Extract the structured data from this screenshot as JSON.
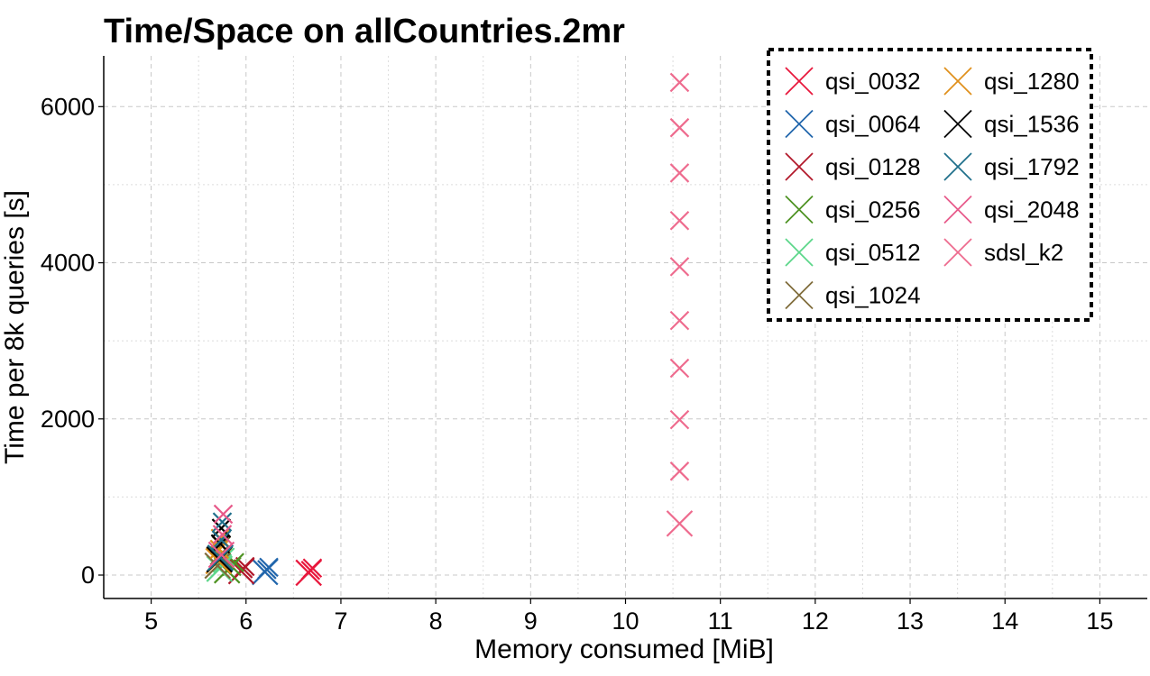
{
  "chart_data": {
    "type": "scatter",
    "title": "Time/Space on allCountries.2mr",
    "xlabel": "Memory consumed [MiB]",
    "ylabel": "Time per 8k queries [s]",
    "xlim": [
      4.5,
      15.5
    ],
    "ylim": [
      -300,
      6650
    ],
    "x_ticks": [
      5,
      6,
      7,
      8,
      9,
      10,
      11,
      12,
      13,
      14,
      15
    ],
    "y_ticks": [
      0,
      2000,
      4000,
      6000
    ],
    "grid": true,
    "legend_position": "top-right",
    "legend_columns": 2,
    "series": [
      {
        "name": "qsi_0032",
        "color": "#e8173c",
        "points": [
          [
            6.66,
            30
          ],
          [
            6.68,
            60
          ],
          [
            6.7,
            90
          ]
        ]
      },
      {
        "name": "qsi_0064",
        "color": "#2166ac",
        "points": [
          [
            6.2,
            40
          ],
          [
            6.22,
            70
          ],
          [
            6.24,
            100
          ]
        ]
      },
      {
        "name": "qsi_0128",
        "color": "#b2182b",
        "points": [
          [
            5.95,
            50
          ],
          [
            5.97,
            80
          ],
          [
            5.99,
            110
          ]
        ]
      },
      {
        "name": "qsi_0256",
        "color": "#4d9221",
        "points": [
          [
            5.8,
            60
          ],
          [
            5.85,
            110
          ],
          [
            5.88,
            160
          ]
        ]
      },
      {
        "name": "qsi_0512",
        "color": "#5cd68a",
        "points": [
          [
            5.72,
            80
          ],
          [
            5.75,
            150
          ],
          [
            5.78,
            230
          ]
        ]
      },
      {
        "name": "qsi_1024",
        "color": "#7f6b3a",
        "points": [
          [
            5.7,
            120
          ],
          [
            5.72,
            250
          ],
          [
            5.74,
            380
          ]
        ]
      },
      {
        "name": "qsi_1280",
        "color": "#e0901c",
        "points": [
          [
            5.71,
            180
          ],
          [
            5.72,
            330
          ],
          [
            5.73,
            470
          ]
        ]
      },
      {
        "name": "qsi_1536",
        "color": "#000000",
        "points": [
          [
            5.72,
            200
          ],
          [
            5.73,
            400
          ],
          [
            5.74,
            600
          ]
        ]
      },
      {
        "name": "qsi_1792",
        "color": "#1f6f8b",
        "points": [
          [
            5.73,
            220
          ],
          [
            5.74,
            450
          ],
          [
            5.75,
            680
          ]
        ]
      },
      {
        "name": "qsi_2048",
        "color": "#e75a8a",
        "points": [
          [
            5.74,
            260
          ],
          [
            5.75,
            520
          ],
          [
            5.76,
            780
          ]
        ]
      },
      {
        "name": "sdsl_k2",
        "color": "#ee6b8e",
        "points": [
          [
            10.57,
            660
          ],
          [
            10.57,
            1330
          ],
          [
            10.57,
            1990
          ],
          [
            10.57,
            2650
          ],
          [
            10.57,
            3260
          ],
          [
            10.57,
            3950
          ],
          [
            10.57,
            4540
          ],
          [
            10.57,
            5150
          ],
          [
            10.57,
            5730
          ],
          [
            10.57,
            6310
          ]
        ]
      }
    ]
  }
}
